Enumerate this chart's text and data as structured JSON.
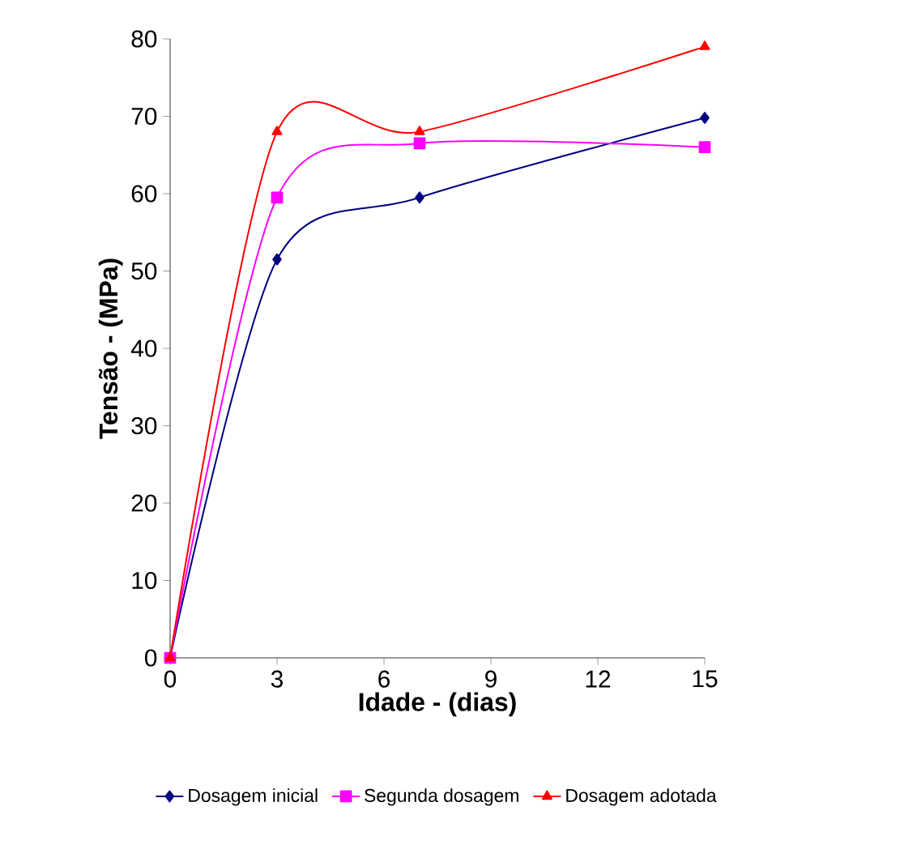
{
  "chart_data": {
    "type": "line",
    "xlabel": "Idade - (dias)",
    "ylabel": "Tensão - (MPa)",
    "x": [
      0,
      3,
      7,
      15
    ],
    "series": [
      {
        "name": "Dosagem inicial",
        "color": "#000080",
        "marker": "diamond",
        "values": [
          0,
          51.5,
          59.5,
          69.8
        ]
      },
      {
        "name": "Segunda dosagem",
        "color": "#ff00ff",
        "marker": "square",
        "values": [
          0,
          59.5,
          66.5,
          66
        ]
      },
      {
        "name": "Dosagem adotada",
        "color": "#ff0000",
        "marker": "triangle",
        "values": [
          0,
          68,
          68,
          79
        ]
      }
    ],
    "xlim": [
      0,
      15
    ],
    "xticks": [
      0,
      3,
      6,
      9,
      12,
      15
    ],
    "ylim": [
      0,
      80
    ],
    "yticks": [
      0,
      10,
      20,
      30,
      40,
      50,
      60,
      70,
      80
    ],
    "grid": false,
    "legend": "bottom",
    "line_style": "solid"
  }
}
